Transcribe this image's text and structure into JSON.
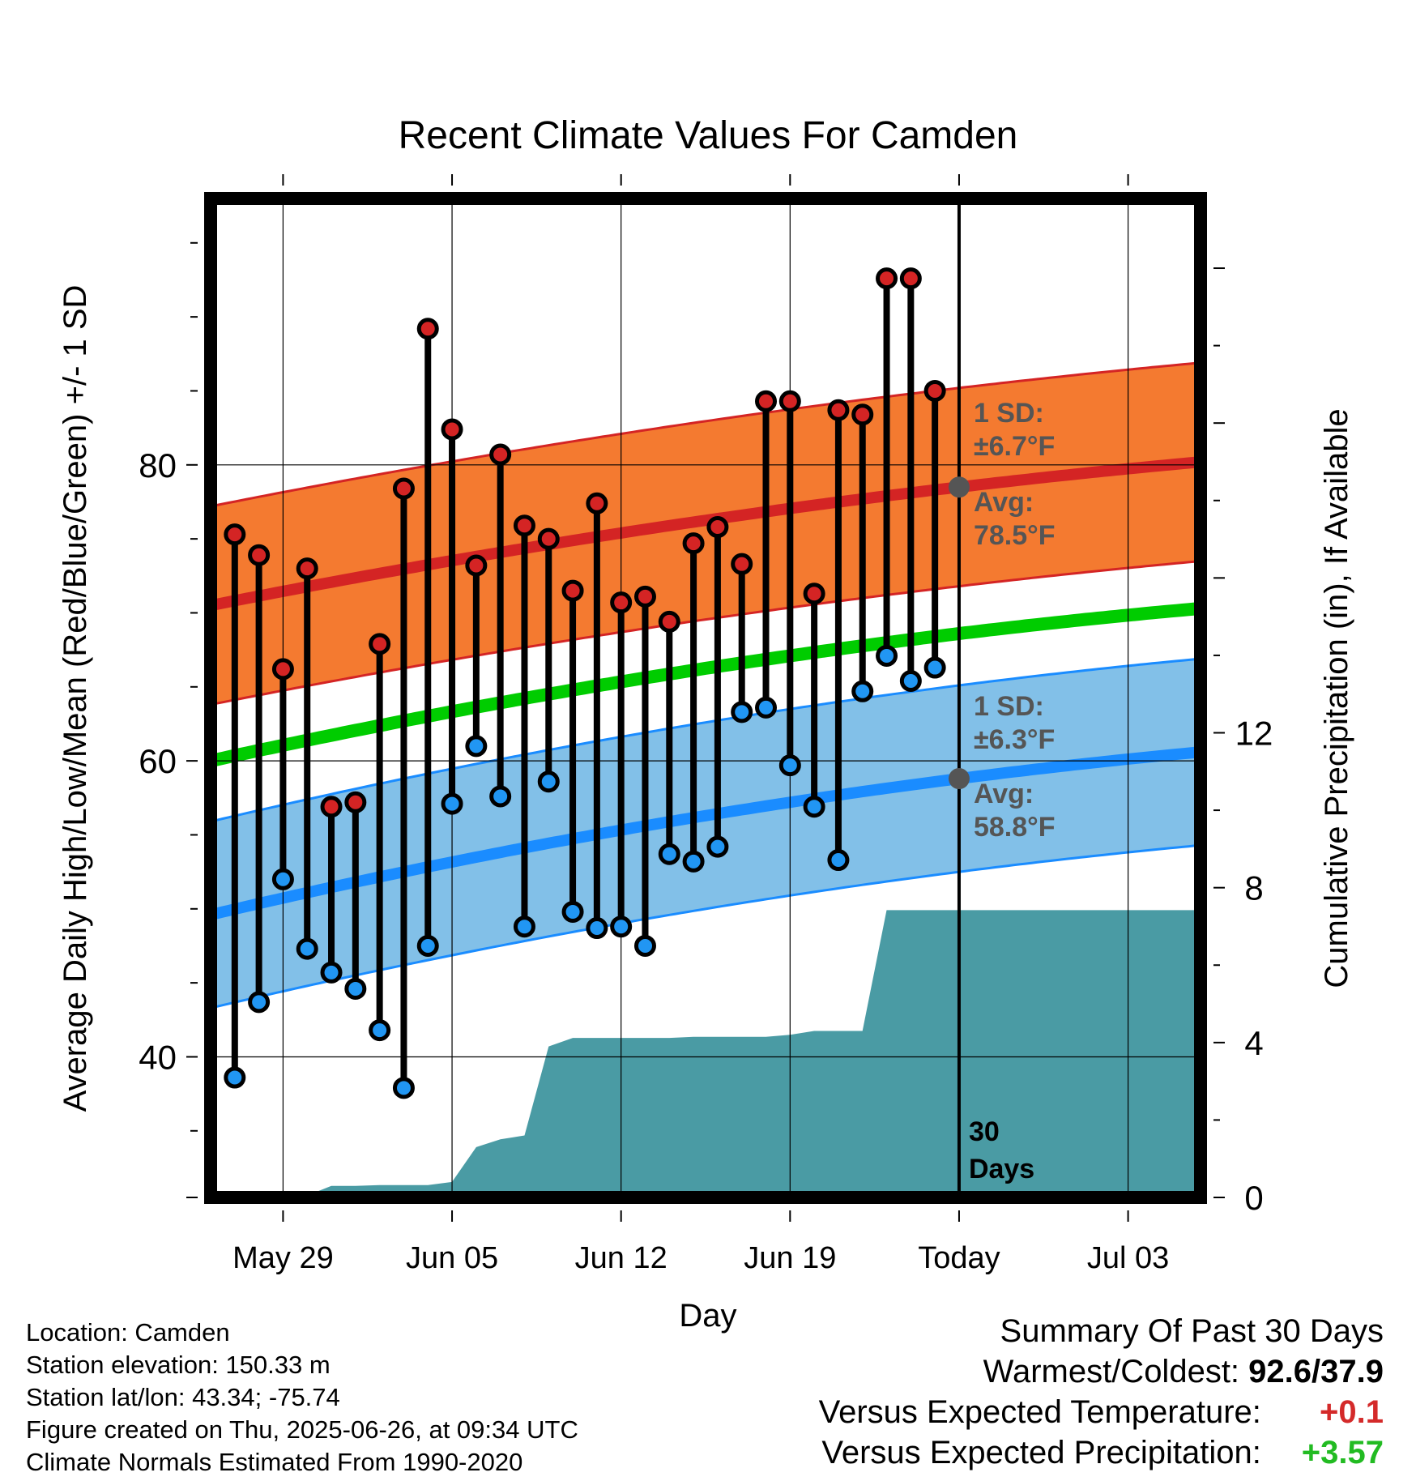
{
  "chart_data": {
    "type": "line",
    "title": "Recent Climate Values For Camden",
    "xlabel": "Day",
    "ylabel": "Average Daily High/Low/Mean (Red/Blue/Green) +/- 1 SD",
    "y2label": "Cumulative Precipitation (in), If Available",
    "xlim": [
      "2025-05-26",
      "2025-07-06"
    ],
    "ylim": [
      30.5,
      98
    ],
    "y2lim": [
      0,
      25.8
    ],
    "x_ticks": [
      "May 29",
      "Jun 05",
      "Jun 12",
      "Jun 19",
      "Today",
      "Jul 03"
    ],
    "y_ticks": [
      40,
      60,
      80
    ],
    "y2_ticks": [
      0,
      4,
      8,
      12
    ],
    "grid": true,
    "today": "2025-06-26",
    "days_label": "30 Days",
    "colors": {
      "high": "#d42424",
      "high_band": "#f47a30",
      "low": "#1a8cff",
      "low_band": "#82c0e8",
      "mean": "#00cc00",
      "precip": "#4a9ba4",
      "marker_high": "#d42424",
      "marker_low": "#2196f3",
      "annotation": "#555555"
    },
    "normals": {
      "dates": [
        "2025-05-26",
        "2025-06-26",
        "2025-07-06"
      ],
      "high": [
        70.5,
        78.5,
        80.2
      ],
      "high_sd": 6.7,
      "low": [
        49.6,
        58.8,
        60.6
      ],
      "low_sd": 6.3,
      "mean": [
        60.0,
        68.6,
        70.3
      ]
    },
    "observed": {
      "dates": [
        "2025-05-27",
        "2025-05-28",
        "2025-05-29",
        "2025-05-30",
        "2025-05-31",
        "2025-06-01",
        "2025-06-02",
        "2025-06-03",
        "2025-06-04",
        "2025-06-05",
        "2025-06-06",
        "2025-06-07",
        "2025-06-08",
        "2025-06-09",
        "2025-06-10",
        "2025-06-11",
        "2025-06-12",
        "2025-06-13",
        "2025-06-14",
        "2025-06-15",
        "2025-06-16",
        "2025-06-17",
        "2025-06-18",
        "2025-06-19",
        "2025-06-20",
        "2025-06-21",
        "2025-06-22",
        "2025-06-23",
        "2025-06-24",
        "2025-06-25"
      ],
      "high": [
        75.3,
        73.9,
        66.2,
        73.0,
        56.9,
        57.2,
        67.9,
        78.4,
        89.2,
        82.4,
        73.2,
        80.7,
        75.9,
        75.0,
        71.5,
        77.4,
        70.7,
        71.1,
        69.4,
        74.7,
        75.8,
        73.3,
        84.3,
        84.3,
        71.3,
        83.7,
        83.4,
        92.6,
        92.6,
        85.0
      ],
      "low": [
        38.6,
        43.7,
        52.0,
        47.3,
        45.7,
        44.6,
        41.8,
        37.9,
        47.5,
        57.1,
        61.0,
        57.6,
        48.8,
        58.6,
        49.8,
        48.7,
        48.8,
        47.5,
        53.7,
        53.2,
        54.2,
        63.3,
        63.6,
        59.7,
        56.9,
        53.3,
        64.7,
        67.1,
        65.4,
        66.3
      ]
    },
    "precip": {
      "dates": [
        "2025-05-26",
        "2025-05-29",
        "2025-05-30",
        "2025-05-31",
        "2025-06-01",
        "2025-06-02",
        "2025-06-03",
        "2025-06-04",
        "2025-06-05",
        "2025-06-06",
        "2025-06-07",
        "2025-06-08",
        "2025-06-09",
        "2025-06-10",
        "2025-06-11",
        "2025-06-12",
        "2025-06-13",
        "2025-06-14",
        "2025-06-15",
        "2025-06-16",
        "2025-06-17",
        "2025-06-18",
        "2025-06-19",
        "2025-06-20",
        "2025-06-21",
        "2025-06-22",
        "2025-06-23",
        "2025-07-06"
      ],
      "values": [
        0.0,
        0.0,
        0.05,
        0.3,
        0.3,
        0.32,
        0.32,
        0.32,
        0.4,
        1.3,
        1.5,
        1.6,
        3.9,
        4.12,
        4.12,
        4.12,
        4.12,
        4.12,
        4.15,
        4.15,
        4.15,
        4.15,
        4.2,
        4.3,
        4.3,
        4.3,
        7.42,
        7.42
      ]
    },
    "annotations": {
      "high_sd_label": "1 SD:",
      "high_sd_value": "±6.7°F",
      "high_avg_label": "Avg:",
      "high_avg_value": "78.5°F",
      "low_sd_label": "1 SD:",
      "low_sd_value": "±6.3°F",
      "low_avg_label": "Avg:",
      "low_avg_value": "58.8°F"
    }
  },
  "footer": {
    "location": "Location: Camden",
    "elevation": "Station elevation: 150.33 m",
    "latlon": "Station lat/lon: 43.34; -75.74",
    "created": "Figure created on Thu, 2025-06-26, at 09:34 UTC",
    "normals": "Climate Normals Estimated From 1990-2020"
  },
  "summary": {
    "title": "Summary Of Past 30 Days",
    "warm_cold_label": "Warmest/Coldest:",
    "warm_cold_value": "92.6/37.9",
    "temp_label": "Versus Expected Temperature:",
    "temp_value": "+0.1",
    "precip_label": "Versus Expected Precipitation:",
    "precip_value": "+3.57"
  }
}
